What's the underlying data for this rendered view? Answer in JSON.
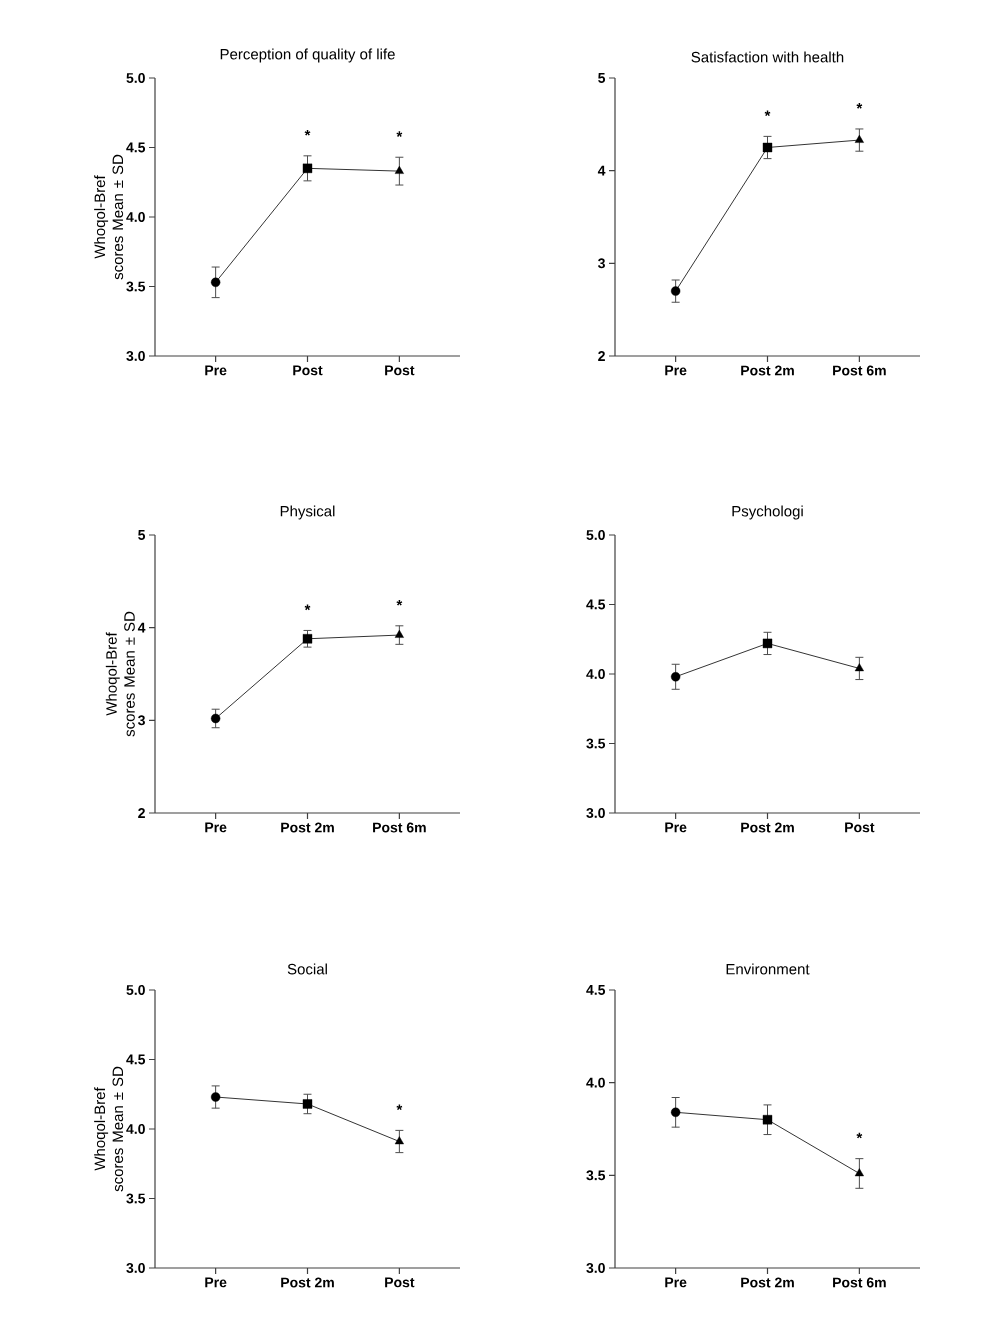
{
  "chart_data": [
    {
      "type": "line",
      "title": "Perception of quality of life",
      "ylabel": "Whoqol-Bref scores Mean ± SD",
      "categories": [
        "Pre",
        "Post",
        "Post"
      ],
      "ylim": [
        3,
        5
      ],
      "yticks": [
        {
          "value": 3,
          "label": "3.0"
        },
        {
          "value": 3.5,
          "label": "3.5"
        },
        {
          "value": 4,
          "label": "4.0"
        },
        {
          "value": 4.5,
          "label": "4.5"
        },
        {
          "value": 5,
          "label": "5.0"
        }
      ],
      "series": [
        {
          "color": "#000000",
          "values": [
            3.53,
            4.35,
            4.33
          ],
          "errors": [
            0.11,
            0.09,
            0.1
          ],
          "marker": [
            "circle",
            "square",
            "triangle"
          ]
        }
      ],
      "annotations": [
        "*",
        "*"
      ]
    },
    {
      "type": "line",
      "title": "Satisfaction with health",
      "categories": [
        "Pre",
        "Post 2m",
        "Post 6m"
      ],
      "ylim": [
        2,
        5
      ],
      "yticks": [
        2,
        3,
        4,
        5
      ],
      "series": [
        {
          "color": "#000000",
          "values": [
            2.7,
            4.25,
            4.33
          ],
          "errors": [
            0.12,
            0.12,
            0.12
          ],
          "marker": [
            "circle",
            "square",
            "triangle"
          ]
        }
      ],
      "annotations": [
        "*",
        "*"
      ]
    },
    {
      "type": "line",
      "title": "Physical",
      "ylabel": "Whoqol-Bref scores Mean ± SD",
      "categories": [
        "Pre",
        "Post 2m",
        "Post 6m"
      ],
      "ylim": [
        2,
        5
      ],
      "yticks": [
        2,
        3,
        4,
        5
      ],
      "series": [
        {
          "color": "#000000",
          "values": [
            3.02,
            3.88,
            3.92
          ],
          "errors": [
            0.1,
            0.09,
            0.1
          ],
          "marker": [
            "circle",
            "square",
            "triangle"
          ]
        }
      ],
      "annotations": [
        "*",
        "*"
      ]
    },
    {
      "type": "line",
      "title": "Psychologi",
      "categories": [
        "Pre",
        "Post 2m",
        "Post"
      ],
      "ylim": [
        3,
        5
      ],
      "yticks": [
        {
          "value": 3,
          "label": "3.0"
        },
        {
          "value": 3.5,
          "label": "3.5"
        },
        {
          "value": 4,
          "label": "4.0"
        },
        {
          "value": 4.5,
          "label": "4.5"
        },
        {
          "value": 5,
          "label": "5.0"
        }
      ],
      "series": [
        {
          "color": "#000000",
          "values": [
            3.98,
            4.22,
            4.04
          ],
          "errors": [
            0.09,
            0.08,
            0.08
          ],
          "marker": [
            "circle",
            "square",
            "triangle"
          ]
        }
      ]
    },
    {
      "type": "line",
      "title": "Social",
      "ylabel": "Whoqol-Bref scores Mean ± SD",
      "categories": [
        "Pre",
        "Post 2m",
        "Post"
      ],
      "ylim": [
        3,
        5
      ],
      "yticks": [
        {
          "value": 3,
          "label": "3.0"
        },
        {
          "value": 3.5,
          "label": "3.5"
        },
        {
          "value": 4,
          "label": "4.0"
        },
        {
          "value": 4.5,
          "label": "4.5"
        },
        {
          "value": 5,
          "label": "5.0"
        }
      ],
      "series": [
        {
          "color": "#000000",
          "values": [
            4.23,
            4.18,
            3.91
          ],
          "errors": [
            0.08,
            0.07,
            0.08
          ],
          "marker": [
            "circle",
            "square",
            "triangle"
          ]
        }
      ],
      "annotations": [
        "*"
      ]
    },
    {
      "type": "line",
      "title": "Environment",
      "categories": [
        "Pre",
        "Post 2m",
        "Post 6m"
      ],
      "ylim": [
        3,
        4.5
      ],
      "yticks": [
        {
          "value": 3,
          "label": "3.0"
        },
        {
          "value": 3.5,
          "label": "3.5"
        },
        {
          "value": 4,
          "label": "4.0"
        },
        {
          "value": 4.5,
          "label": "4.5"
        }
      ],
      "series": [
        {
          "color": "#000000",
          "values": [
            3.84,
            3.8,
            3.51
          ],
          "errors": [
            0.08,
            0.08,
            0.08
          ],
          "marker": [
            "circle",
            "square",
            "triangle"
          ]
        }
      ],
      "annotations": [
        "*"
      ]
    }
  ]
}
